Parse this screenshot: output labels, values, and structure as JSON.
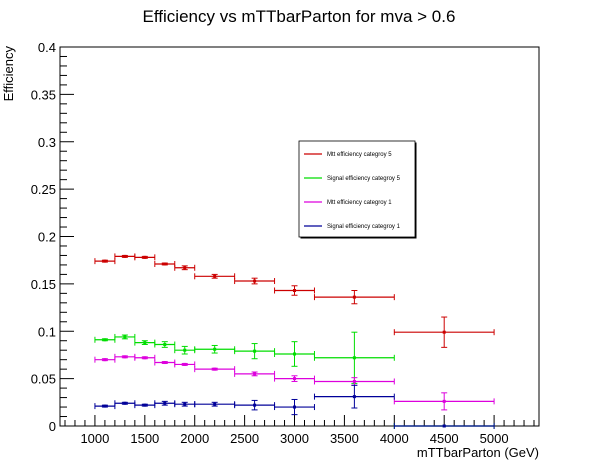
{
  "chart_data": {
    "type": "scatter",
    "title": "Efficiency vs mTTbarParton for mva > 0.6",
    "xlabel": "mTTbarParton (GeV)",
    "ylabel": "Efficiency",
    "xlim": [
      650,
      5450
    ],
    "ylim": [
      0,
      0.4
    ],
    "x_ticks": [
      "1000",
      "1500",
      "2000",
      "2500",
      "3000",
      "3500",
      "4000",
      "4500",
      "5000"
    ],
    "y_ticks": [
      "0",
      "0.05",
      "0.1",
      "0.15",
      "0.2",
      "0.25",
      "0.3",
      "0.35",
      "0.4"
    ],
    "grid": false,
    "legend_position": "center-right",
    "series": [
      {
        "name": "Mtt efficiency categroy 5",
        "color": "#cc0000",
        "points": [
          {
            "x": 1100,
            "xlo": 1000,
            "xhi": 1200,
            "y": 0.174,
            "err": 0.001
          },
          {
            "x": 1300,
            "xlo": 1200,
            "xhi": 1400,
            "y": 0.179,
            "err": 0.001
          },
          {
            "x": 1500,
            "xlo": 1400,
            "xhi": 1600,
            "y": 0.178,
            "err": 0.001
          },
          {
            "x": 1700,
            "xlo": 1600,
            "xhi": 1800,
            "y": 0.171,
            "err": 0.001
          },
          {
            "x": 1900,
            "xlo": 1800,
            "xhi": 2000,
            "y": 0.167,
            "err": 0.002
          },
          {
            "x": 2200,
            "xlo": 2000,
            "xhi": 2400,
            "y": 0.158,
            "err": 0.002
          },
          {
            "x": 2600,
            "xlo": 2400,
            "xhi": 2800,
            "y": 0.153,
            "err": 0.003
          },
          {
            "x": 3000,
            "xlo": 2800,
            "xhi": 3200,
            "y": 0.143,
            "err": 0.005
          },
          {
            "x": 3600,
            "xlo": 3200,
            "xhi": 4000,
            "y": 0.136,
            "err": 0.007
          },
          {
            "x": 4500,
            "xlo": 4000,
            "xhi": 5000,
            "y": 0.099,
            "err": 0.016
          }
        ]
      },
      {
        "name": "Signal efficiency categroy 5",
        "color": "#00dd00",
        "points": [
          {
            "x": 1100,
            "xlo": 1000,
            "xhi": 1200,
            "y": 0.091,
            "err": 0.001
          },
          {
            "x": 1300,
            "xlo": 1200,
            "xhi": 1400,
            "y": 0.094,
            "err": 0.002
          },
          {
            "x": 1500,
            "xlo": 1400,
            "xhi": 1600,
            "y": 0.088,
            "err": 0.002
          },
          {
            "x": 1700,
            "xlo": 1600,
            "xhi": 1800,
            "y": 0.086,
            "err": 0.003
          },
          {
            "x": 1900,
            "xlo": 1800,
            "xhi": 2000,
            "y": 0.08,
            "err": 0.004
          },
          {
            "x": 2200,
            "xlo": 2000,
            "xhi": 2400,
            "y": 0.081,
            "err": 0.004
          },
          {
            "x": 2600,
            "xlo": 2400,
            "xhi": 2800,
            "y": 0.079,
            "err": 0.008
          },
          {
            "x": 3000,
            "xlo": 2800,
            "xhi": 3200,
            "y": 0.076,
            "err": 0.013
          },
          {
            "x": 3600,
            "xlo": 3200,
            "xhi": 4000,
            "y": 0.072,
            "err": 0.027
          },
          {
            "x": 4500,
            "xlo": 4000,
            "xhi": 5000,
            "y": 0.0,
            "err": 0.0
          }
        ]
      },
      {
        "name": "Mtt efficiency categroy 1",
        "color": "#dd00dd",
        "points": [
          {
            "x": 1100,
            "xlo": 1000,
            "xhi": 1200,
            "y": 0.07,
            "err": 0.001
          },
          {
            "x": 1300,
            "xlo": 1200,
            "xhi": 1400,
            "y": 0.073,
            "err": 0.001
          },
          {
            "x": 1500,
            "xlo": 1400,
            "xhi": 1600,
            "y": 0.072,
            "err": 0.001
          },
          {
            "x": 1700,
            "xlo": 1600,
            "xhi": 1800,
            "y": 0.067,
            "err": 0.001
          },
          {
            "x": 1900,
            "xlo": 1800,
            "xhi": 2000,
            "y": 0.065,
            "err": 0.001
          },
          {
            "x": 2200,
            "xlo": 2000,
            "xhi": 2400,
            "y": 0.06,
            "err": 0.001
          },
          {
            "x": 2600,
            "xlo": 2400,
            "xhi": 2800,
            "y": 0.055,
            "err": 0.002
          },
          {
            "x": 3000,
            "xlo": 2800,
            "xhi": 3200,
            "y": 0.05,
            "err": 0.003
          },
          {
            "x": 3600,
            "xlo": 3200,
            "xhi": 4000,
            "y": 0.047,
            "err": 0.004
          },
          {
            "x": 4500,
            "xlo": 4000,
            "xhi": 5000,
            "y": 0.026,
            "err": 0.009
          }
        ]
      },
      {
        "name": "Signal efficiency categroy 1",
        "color": "#000099",
        "points": [
          {
            "x": 1100,
            "xlo": 1000,
            "xhi": 1200,
            "y": 0.021,
            "err": 0.001
          },
          {
            "x": 1300,
            "xlo": 1200,
            "xhi": 1400,
            "y": 0.024,
            "err": 0.001
          },
          {
            "x": 1500,
            "xlo": 1400,
            "xhi": 1600,
            "y": 0.022,
            "err": 0.001
          },
          {
            "x": 1700,
            "xlo": 1600,
            "xhi": 1800,
            "y": 0.024,
            "err": 0.002
          },
          {
            "x": 1900,
            "xlo": 1800,
            "xhi": 2000,
            "y": 0.023,
            "err": 0.002
          },
          {
            "x": 2200,
            "xlo": 2000,
            "xhi": 2400,
            "y": 0.023,
            "err": 0.002
          },
          {
            "x": 2600,
            "xlo": 2400,
            "xhi": 2800,
            "y": 0.022,
            "err": 0.005
          },
          {
            "x": 3000,
            "xlo": 2800,
            "xhi": 3200,
            "y": 0.02,
            "err": 0.008
          },
          {
            "x": 3600,
            "xlo": 3200,
            "xhi": 4000,
            "y": 0.031,
            "err": 0.012
          },
          {
            "x": 4500,
            "xlo": 4000,
            "xhi": 5000,
            "y": 0.0,
            "err": 0.0
          }
        ]
      }
    ]
  }
}
